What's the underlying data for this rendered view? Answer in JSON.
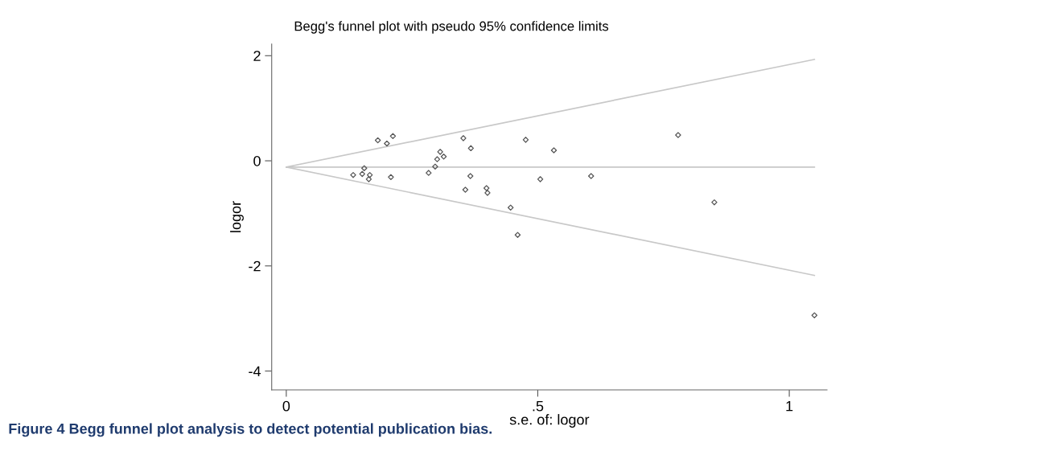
{
  "chart_data": {
    "type": "scatter",
    "title": "Begg's funnel plot with pseudo 95% confidence limits",
    "xlabel": "s.e. of: logor",
    "ylabel": "logor",
    "xlim": [
      -0.029,
      1.075
    ],
    "ylim": [
      -4.36,
      2.22
    ],
    "xticks": [
      0,
      {
        "value": 0.5,
        "label": ".5"
      },
      1
    ],
    "yticks": [
      -4,
      -2,
      0,
      2
    ],
    "grid": false,
    "legend": false,
    "series": [
      {
        "type": "line",
        "color": "#c8c8c8",
        "x": [
          0,
          1.05
        ],
        "values": [
          -0.12,
          1.93
        ]
      },
      {
        "type": "line",
        "color": "#c8c8c8",
        "x": [
          0,
          1.05
        ],
        "values": [
          -0.12,
          -0.12
        ]
      },
      {
        "type": "line",
        "color": "#c8c8c8",
        "x": [
          0,
          1.05
        ],
        "values": [
          -0.12,
          -2.18
        ]
      },
      {
        "color": "#555555",
        "marker": "diamond",
        "x": [
          0.133,
          0.151,
          0.155,
          0.166,
          0.164,
          0.182,
          0.2,
          0.212,
          0.208,
          0.283,
          0.296,
          0.3,
          0.306,
          0.313,
          0.352,
          0.356,
          0.367,
          0.366,
          0.398,
          0.4,
          0.446,
          0.46,
          0.476,
          0.505,
          0.532,
          0.606,
          0.779,
          0.851,
          1.05
        ],
        "values": [
          -0.27,
          -0.25,
          -0.14,
          -0.27,
          -0.35,
          0.39,
          0.33,
          0.47,
          -0.31,
          -0.23,
          -0.11,
          0.03,
          0.17,
          0.08,
          0.43,
          -0.55,
          0.24,
          -0.29,
          -0.52,
          -0.61,
          -0.89,
          -1.41,
          0.4,
          -0.35,
          0.2,
          -0.29,
          0.49,
          -0.79,
          -2.94
        ]
      }
    ],
    "annotations": [
      "Figure 4 Begg funnel plot analysis to detect potential publication bias."
    ]
  }
}
